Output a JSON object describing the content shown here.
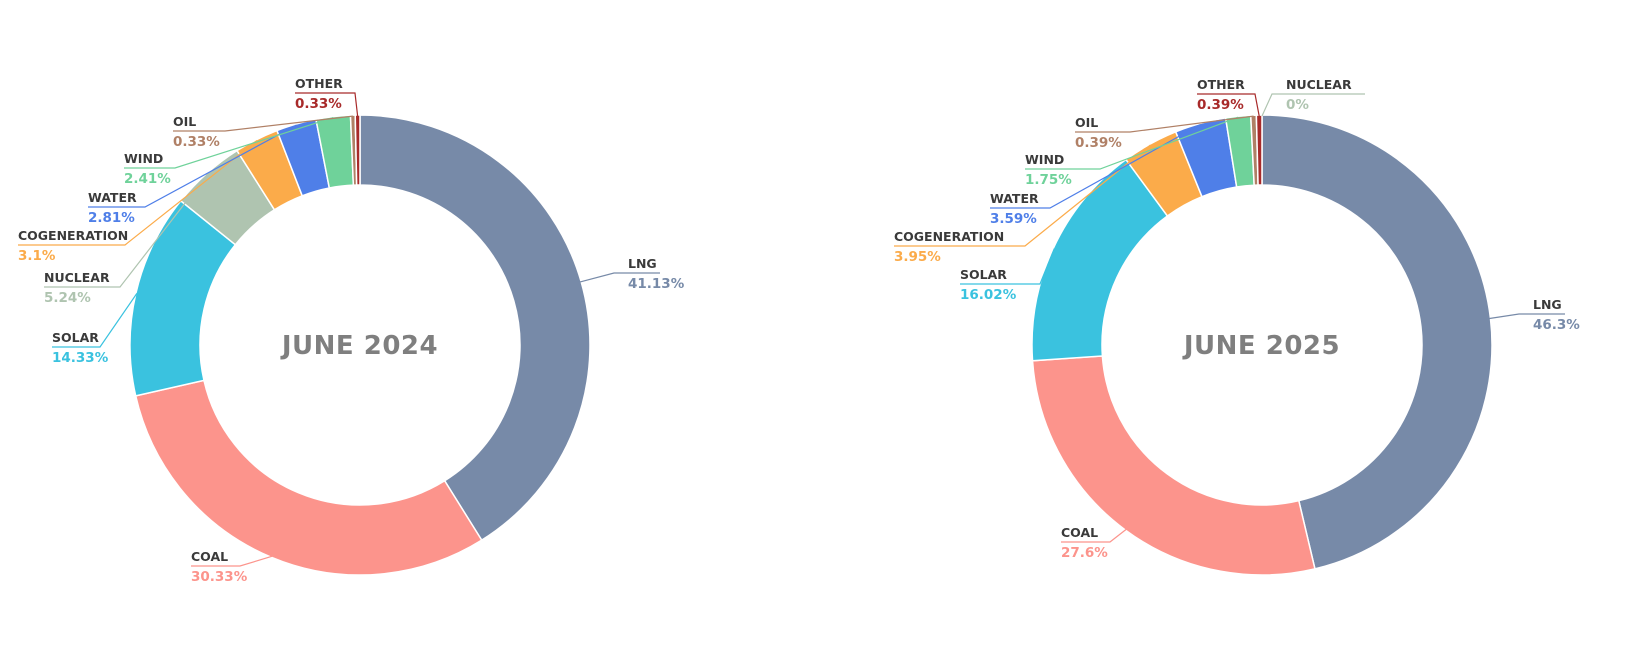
{
  "chart_data": [
    {
      "type": "pie",
      "title": "JUNE 2024",
      "slices": [
        {
          "label": "LNG",
          "value": 41.13,
          "display": "41.13%"
        },
        {
          "label": "COAL",
          "value": 30.33,
          "display": "30.33%"
        },
        {
          "label": "SOLAR",
          "value": 14.33,
          "display": "14.33%"
        },
        {
          "label": "NUCLEAR",
          "value": 5.24,
          "display": "5.24%"
        },
        {
          "label": "COGENERATION",
          "value": 3.1,
          "display": "3.1%"
        },
        {
          "label": "WATER",
          "value": 2.81,
          "display": "2.81%"
        },
        {
          "label": "WIND",
          "value": 2.41,
          "display": "2.41%"
        },
        {
          "label": "OIL",
          "value": 0.33,
          "display": "0.33%"
        },
        {
          "label": "OTHER",
          "value": 0.33,
          "display": "0.33%"
        }
      ]
    },
    {
      "type": "pie",
      "title": "JUNE 2025",
      "slices": [
        {
          "label": "LNG",
          "value": 46.3,
          "display": "46.3%"
        },
        {
          "label": "COAL",
          "value": 27.6,
          "display": "27.6%"
        },
        {
          "label": "SOLAR",
          "value": 16.02,
          "display": "16.02%"
        },
        {
          "label": "COGENERATION",
          "value": 3.95,
          "display": "3.95%"
        },
        {
          "label": "WATER",
          "value": 3.59,
          "display": "3.59%"
        },
        {
          "label": "WIND",
          "value": 1.75,
          "display": "1.75%"
        },
        {
          "label": "OIL",
          "value": 0.39,
          "display": "0.39%"
        },
        {
          "label": "OTHER",
          "value": 0.39,
          "display": "0.39%"
        },
        {
          "label": "NUCLEAR",
          "value": 0,
          "display": "0%"
        }
      ]
    }
  ],
  "colors": {
    "LNG": "#778aa8",
    "COAL": "#fc948c",
    "SOLAR": "#3ac2df",
    "NUCLEAR": "#afc4b0",
    "COGENERATION": "#fbab4a",
    "WATER": "#4f7fe8",
    "WIND": "#6fd29a",
    "OIL": "#b08066",
    "OTHER": "#a82a2a",
    "label_text": "#3a3a3a",
    "title_text": "#7f7f7f"
  }
}
